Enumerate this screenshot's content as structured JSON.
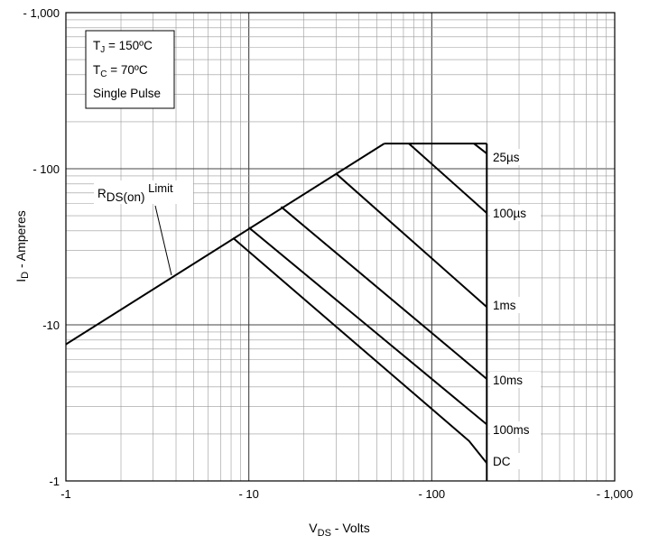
{
  "chart_data": {
    "type": "line",
    "x_scale": "log",
    "y_scale": "log",
    "xlim": [
      -1,
      -1000
    ],
    "ylim": [
      -1,
      -1000
    ],
    "xlabel_main": "V",
    "xlabel_sub": "DS",
    "xlabel_rest": " - Volts",
    "ylabel_main": "I",
    "ylabel_sub": "D",
    "ylabel_rest": " - Amperes",
    "x_ticks": [
      "-1",
      "- 10",
      "- 100",
      "- 1,000"
    ],
    "y_ticks": [
      "-1",
      "-10",
      "- 100",
      "- 1,000"
    ],
    "grid": true,
    "legend_box": {
      "line1_main": "T",
      "line1_sub": "J",
      "line1_rest": " = 150ºC",
      "line2_main": "T",
      "line2_sub": "C",
      "line2_rest": " = 70ºC",
      "line3": "Single Pulse"
    },
    "rds_label": {
      "main": "R",
      "sub": "DS(on)",
      "rest": " Limit"
    },
    "envelope": {
      "rds_limit": [
        [
          -1,
          -7.5
        ],
        [
          -55,
          -145
        ]
      ],
      "current_limit": [
        [
          -55,
          -145
        ],
        [
          -200,
          -145
        ]
      ],
      "voltage_limit": [
        [
          -200,
          -145
        ],
        [
          -200,
          -1
        ]
      ]
    },
    "series": [
      {
        "name": "25µs",
        "points": [
          [
            -170,
            -145
          ],
          [
            -200,
            -125
          ]
        ]
      },
      {
        "name": "100µs",
        "points": [
          [
            -75,
            -145
          ],
          [
            -200,
            -52
          ]
        ]
      },
      {
        "name": "1ms",
        "points": [
          [
            -30,
            -93
          ],
          [
            -200,
            -13
          ]
        ]
      },
      {
        "name": "10ms",
        "points": [
          [
            -15,
            -57
          ],
          [
            -200,
            -4.5
          ]
        ]
      },
      {
        "name": "100ms",
        "points": [
          [
            -10,
            -42
          ],
          [
            -200,
            -2.3
          ]
        ]
      },
      {
        "name": "DC",
        "points": [
          [
            -8.2,
            -36
          ],
          [
            -160,
            -1.8
          ],
          [
            -200,
            -1.3
          ]
        ]
      }
    ]
  }
}
